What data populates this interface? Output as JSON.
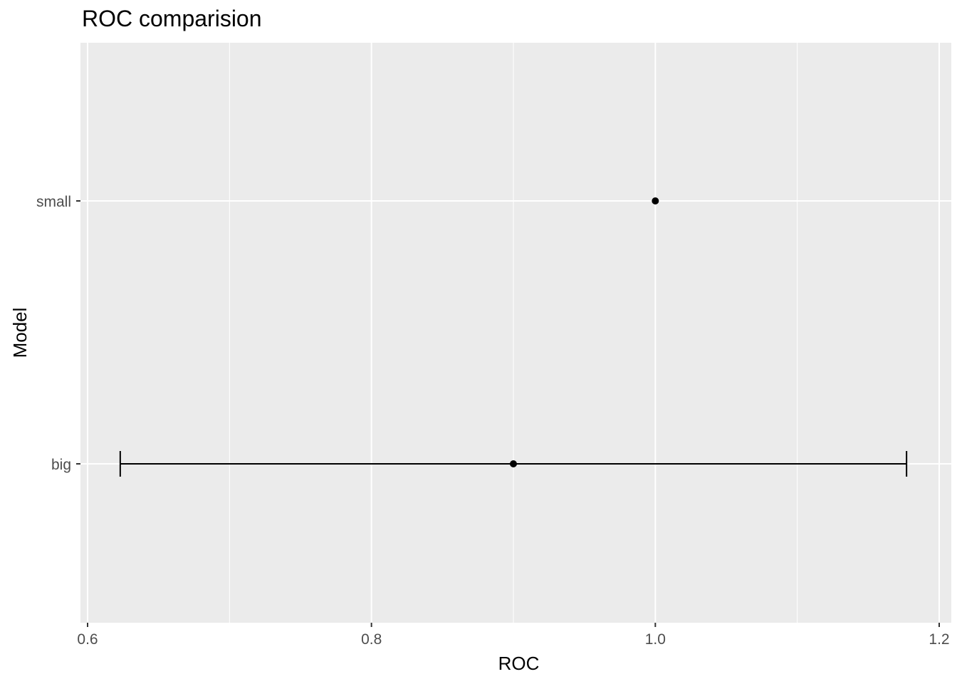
{
  "chart_data": {
    "type": "scatter",
    "title": "ROC comparision",
    "xlabel": "ROC",
    "ylabel": "Model",
    "xlim": [
      0.6,
      1.2
    ],
    "x_ticks": [
      "0.6",
      "0.8",
      "1.0",
      "1.2"
    ],
    "x_tick_values": [
      0.6,
      0.8,
      1.0,
      1.2
    ],
    "x_minor_ticks": [
      0.7,
      0.9,
      1.1
    ],
    "categories": [
      "big",
      "small"
    ],
    "points": [
      {
        "category": "big",
        "value": 0.9,
        "error_low": 0.623,
        "error_high": 1.177
      },
      {
        "category": "small",
        "value": 1.0
      }
    ],
    "grid": true,
    "legend": "none",
    "colors": {
      "panel": "#ebebeb",
      "grid": "#ffffff",
      "marks": "#000000",
      "tick_text": "#4d4d4d"
    }
  }
}
